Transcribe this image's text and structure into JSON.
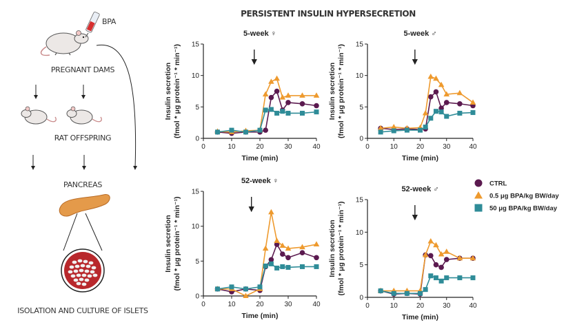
{
  "figure_title": "PERSISTENT INSULIN HYPERSECRETION",
  "diagram": {
    "bpa_label": "BPA",
    "step1": "PREGNANT DAMS",
    "step2": "RAT OFFSPRING",
    "step3": "PANCREAS",
    "step4": "ISOLATION AND CULTURE OF ISLETS"
  },
  "legend": [
    {
      "name": "CTRL",
      "color": "#5b1a4f",
      "marker": "circle"
    },
    {
      "name": "0.5 μg BPA/kg BW/day",
      "color": "#ee9a2e",
      "marker": "triangle"
    },
    {
      "name": "50 μg BPA/kg BW/day",
      "color": "#2f8c98",
      "marker": "square"
    }
  ],
  "chart_data": [
    {
      "type": "line",
      "title": "5-week ♀",
      "xlabel": "Time (min)",
      "ylabel": "Insulin secretion",
      "ylabel2": "(fmol * μg protein⁻¹ * min⁻¹)",
      "xlim": [
        0,
        40
      ],
      "ylim": [
        0,
        15
      ],
      "xticks": [
        0,
        10,
        20,
        30,
        40
      ],
      "yticks": [
        0,
        5,
        10,
        15
      ],
      "arrow_x": 18,
      "x": [
        5,
        10,
        15,
        20,
        22,
        24,
        26,
        28,
        30,
        35,
        40
      ],
      "series": [
        {
          "name": "CTRL",
          "values": [
            1.0,
            0.8,
            1.0,
            1.0,
            1.3,
            6.5,
            7.5,
            4.5,
            5.7,
            5.5,
            5.2
          ]
        },
        {
          "name": "0.5 μg BPA/kg BW/day",
          "values": [
            1.1,
            1.0,
            1.2,
            1.3,
            7.0,
            9.0,
            9.5,
            6.5,
            6.8,
            6.8,
            6.8
          ]
        },
        {
          "name": "50 μg BPA/kg BW/day",
          "values": [
            1.0,
            1.3,
            1.0,
            1.3,
            4.5,
            4.6,
            4.0,
            4.3,
            4.0,
            4.0,
            4.2
          ]
        }
      ]
    },
    {
      "type": "line",
      "title": "5-week ♂",
      "xlabel": "Time (min)",
      "ylabel": "Insulin secretion",
      "ylabel2": "(fmol * μg protein⁻¹ * min⁻¹)",
      "xlim": [
        0,
        40
      ],
      "ylim": [
        0,
        15
      ],
      "xticks": [
        0,
        10,
        20,
        30,
        40
      ],
      "yticks": [
        0,
        5,
        10,
        15
      ],
      "arrow_x": 18,
      "x": [
        5,
        10,
        15,
        20,
        22,
        24,
        26,
        28,
        30,
        35,
        40
      ],
      "series": [
        {
          "name": "CTRL",
          "values": [
            1.6,
            1.4,
            1.5,
            1.4,
            1.5,
            6.6,
            7.4,
            4.8,
            5.7,
            5.5,
            5.2
          ]
        },
        {
          "name": "0.5 μg BPA/kg BW/day",
          "values": [
            1.6,
            1.8,
            1.6,
            1.7,
            4.0,
            9.8,
            9.5,
            8.5,
            7.0,
            7.2,
            5.7
          ]
        },
        {
          "name": "50 μg BPA/kg BW/day",
          "values": [
            1.0,
            1.2,
            1.3,
            1.3,
            1.8,
            3.2,
            4.3,
            4.2,
            3.5,
            4.0,
            4.1
          ]
        }
      ]
    },
    {
      "type": "line",
      "title": "52-week ♀",
      "xlabel": "Time (min)",
      "ylabel": "Insulin secretion",
      "ylabel2": "(fmol * μg protein⁻¹ * min⁻¹)",
      "xlim": [
        0,
        40
      ],
      "ylim": [
        0,
        15
      ],
      "xticks": [
        0,
        10,
        20,
        30,
        40
      ],
      "yticks": [
        0,
        5,
        10,
        15
      ],
      "arrow_x": 17,
      "x": [
        5,
        10,
        15,
        20,
        22,
        24,
        26,
        28,
        30,
        35,
        40
      ],
      "series": [
        {
          "name": "CTRL",
          "values": [
            1.0,
            0.6,
            1.0,
            0.8,
            4.2,
            5.2,
            7.4,
            6.0,
            5.5,
            6.2,
            5.5
          ]
        },
        {
          "name": "0.5 μg BPA/kg BW/day",
          "values": [
            1.0,
            1.0,
            0.0,
            1.0,
            6.8,
            12.0,
            7.9,
            7.2,
            6.8,
            7.0,
            7.4
          ]
        },
        {
          "name": "50 μg BPA/kg BW/day",
          "values": [
            1.0,
            1.3,
            1.0,
            1.3,
            4.3,
            4.6,
            4.0,
            4.2,
            4.1,
            4.2,
            4.2
          ]
        }
      ]
    },
    {
      "type": "line",
      "title": "52-week ♂",
      "xlabel": "Time (min)",
      "ylabel": "Insulin secretion",
      "ylabel2": "(fmol * μg protein⁻¹ * min⁻¹)",
      "xlim": [
        0,
        40
      ],
      "ylim": [
        0,
        15
      ],
      "xticks": [
        0,
        10,
        20,
        30,
        40
      ],
      "yticks": [
        0,
        5,
        10,
        15
      ],
      "arrow_x": 18,
      "x": [
        5,
        10,
        15,
        20,
        22,
        24,
        26,
        28,
        30,
        35,
        40
      ],
      "series": [
        {
          "name": "CTRL",
          "values": [
            1.0,
            0.5,
            0.6,
            0.5,
            6.5,
            6.4,
            5.0,
            4.6,
            5.8,
            6.0,
            6.0
          ]
        },
        {
          "name": "0.5 μg BPA/kg BW/day",
          "values": [
            1.0,
            1.0,
            1.0,
            1.0,
            6.5,
            8.6,
            8.0,
            6.6,
            7.0,
            6.0,
            6.0
          ]
        },
        {
          "name": "50 μg BPA/kg BW/day",
          "values": [
            1.0,
            0.6,
            0.6,
            0.6,
            1.2,
            3.3,
            3.0,
            2.5,
            3.0,
            3.0,
            3.0
          ]
        }
      ]
    }
  ]
}
